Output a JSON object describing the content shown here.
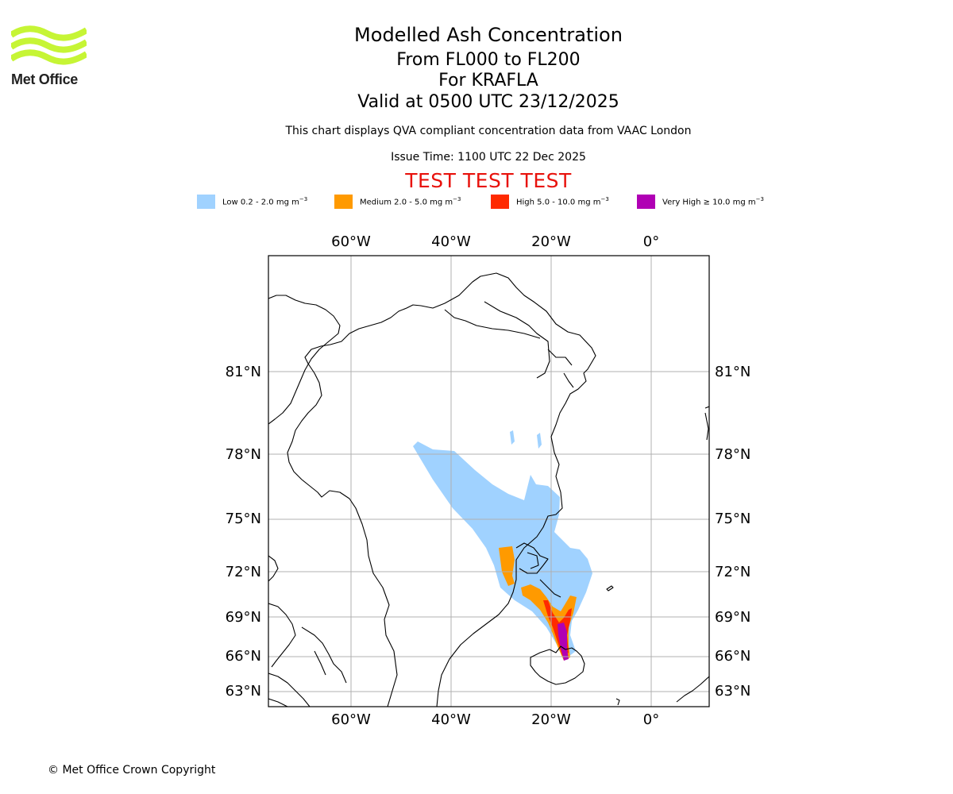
{
  "branding": {
    "logo_text": "Met Office",
    "logo_color": "#c6f535"
  },
  "title": {
    "line1": "Modelled Ash Concentration",
    "line2": "From FL000 to FL200",
    "line3": "For KRAFLA",
    "line4": "Valid at 0500 UTC 23/12/2025"
  },
  "subtitle": {
    "description": "This chart displays QVA compliant concentration data from VAAC London",
    "issue_time": "Issue Time: 1100 UTC 22 Dec 2025"
  },
  "banner": {
    "text": "TEST TEST TEST",
    "color": "#e8120c"
  },
  "legend": [
    {
      "label": "Low 0.2 - 2.0 mg m",
      "unit_exp": "−3",
      "color": "#a0d2ff"
    },
    {
      "label": "Medium 2.0 - 5.0 mg m",
      "unit_exp": "−3",
      "color": "#ff9a00"
    },
    {
      "label": "High 5.0 - 10.0 mg m",
      "unit_exp": "−3",
      "color": "#ff2a00"
    },
    {
      "label": "Very High  ≥  10.0 mg m",
      "unit_exp": "−3",
      "color": "#b000b4"
    }
  ],
  "map": {
    "longitude_labels": [
      "60°W",
      "40°W",
      "20°W",
      "0°"
    ],
    "latitude_labels": [
      "81°N",
      "78°N",
      "75°N",
      "72°N",
      "69°N",
      "66°N",
      "63°N"
    ],
    "gridline_color": "#b0b0b0"
  },
  "footer": {
    "copyright": "© Met Office Crown Copyright"
  }
}
